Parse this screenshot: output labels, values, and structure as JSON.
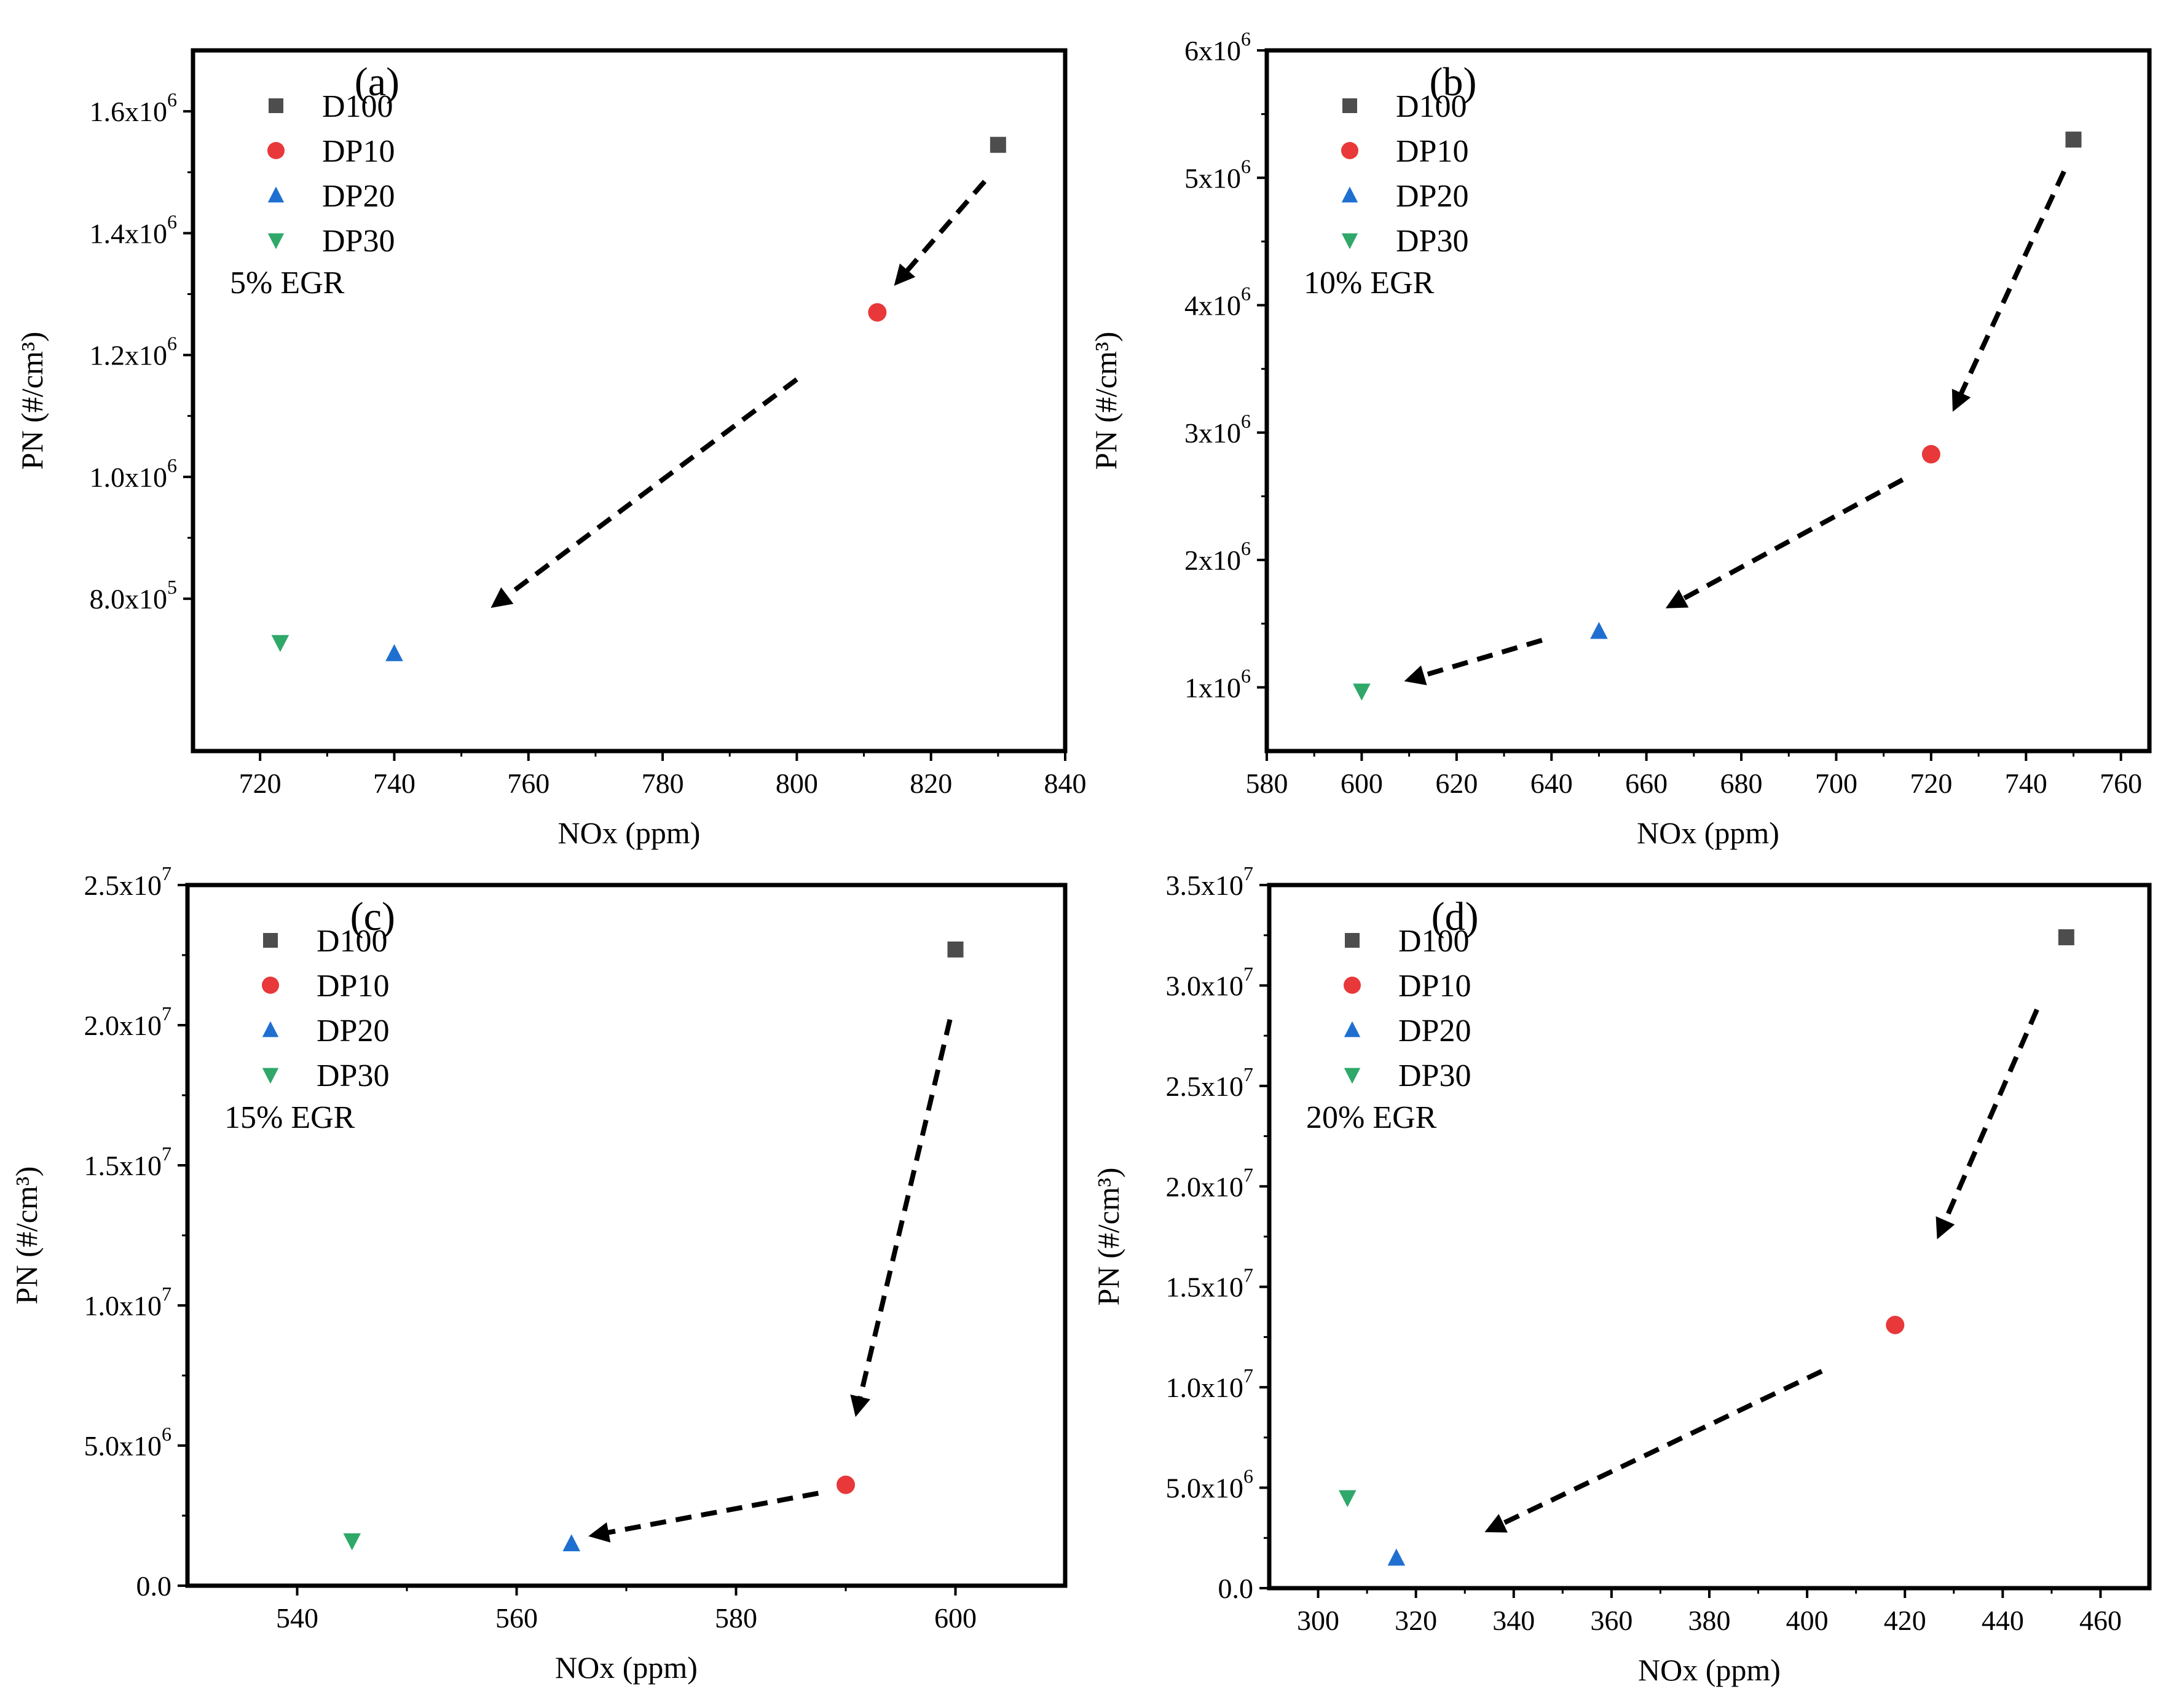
{
  "chart_data": [
    {
      "type": "scatter",
      "panel_label": "(a)",
      "annotation": "5% EGR",
      "xlabel": "NOx (ppm)",
      "ylabel": "PN (#/cm³)",
      "xlim": [
        710,
        840
      ],
      "ylim": [
        550000,
        1700000
      ],
      "x_ticks": [
        720,
        740,
        760,
        780,
        800,
        820,
        840
      ],
      "x_tick_labels": [
        "720",
        "740",
        "760",
        "780",
        "800",
        "820",
        "840"
      ],
      "y_ticks": [
        800000,
        1000000,
        1200000,
        1400000,
        1600000
      ],
      "y_tick_labels": [
        {
          "mantissa": "8.0x10",
          "exponent": "5"
        },
        {
          "mantissa": "1.0x10",
          "exponent": "6"
        },
        {
          "mantissa": "1.2x10",
          "exponent": "6"
        },
        {
          "mantissa": "1.4x10",
          "exponent": "6"
        },
        {
          "mantissa": "1.6x10",
          "exponent": "6"
        }
      ],
      "legend_position": "top-left",
      "series": [
        {
          "name": "D100",
          "marker": "square",
          "color": "#4d4d4d",
          "x": 830,
          "y": 1545000
        },
        {
          "name": "DP10",
          "marker": "circle",
          "color": "#e8383a",
          "x": 812,
          "y": 1270000
        },
        {
          "name": "DP20",
          "marker": "triangle-up",
          "color": "#1f6fd1",
          "x": 740,
          "y": 710000
        },
        {
          "name": "DP30",
          "marker": "triangle-down",
          "color": "#2fa86a",
          "x": 723,
          "y": 728000
        }
      ],
      "arrows": [
        {
          "from": [
            828,
            1485000
          ],
          "to": [
            815,
            1320000
          ]
        },
        {
          "from": [
            800,
            1160000
          ],
          "to": [
            755,
            790000
          ]
        }
      ]
    },
    {
      "type": "scatter",
      "panel_label": "(b)",
      "annotation": "10% EGR",
      "xlabel": "NOx (ppm)",
      "ylabel": "PN (#/cm³)",
      "xlim": [
        580,
        766
      ],
      "ylim": [
        500000,
        6000000
      ],
      "x_ticks": [
        580,
        600,
        620,
        640,
        660,
        680,
        700,
        720,
        740,
        760
      ],
      "x_tick_labels": [
        "580",
        "600",
        "620",
        "640",
        "660",
        "680",
        "700",
        "720",
        "740",
        "760"
      ],
      "y_ticks": [
        1000000,
        2000000,
        3000000,
        4000000,
        5000000,
        6000000
      ],
      "y_tick_labels": [
        {
          "mantissa": "1x10",
          "exponent": "6"
        },
        {
          "mantissa": "2x10",
          "exponent": "6"
        },
        {
          "mantissa": "3x10",
          "exponent": "6"
        },
        {
          "mantissa": "4x10",
          "exponent": "6"
        },
        {
          "mantissa": "5x10",
          "exponent": "6"
        },
        {
          "mantissa": "6x10",
          "exponent": "6"
        }
      ],
      "legend_position": "top-left",
      "series": [
        {
          "name": "D100",
          "marker": "square",
          "color": "#4d4d4d",
          "x": 750,
          "y": 5300000
        },
        {
          "name": "DP10",
          "marker": "circle",
          "color": "#e8383a",
          "x": 720,
          "y": 2830000
        },
        {
          "name": "DP20",
          "marker": "triangle-up",
          "color": "#1f6fd1",
          "x": 650,
          "y": 1440000
        },
        {
          "name": "DP30",
          "marker": "triangle-down",
          "color": "#2fa86a",
          "x": 600,
          "y": 970000
        }
      ],
      "arrows": [
        {
          "from": [
            748,
            5050000
          ],
          "to": [
            725,
            3200000
          ]
        },
        {
          "from": [
            714,
            2630000
          ],
          "to": [
            665,
            1640000
          ]
        },
        {
          "from": [
            638,
            1370000
          ],
          "to": [
            610,
            1060000
          ]
        }
      ]
    },
    {
      "type": "scatter",
      "panel_label": "(c)",
      "annotation": "15% EGR",
      "xlabel": "NOx (ppm)",
      "ylabel": "PN (#/cm³)",
      "xlim": [
        530,
        610
      ],
      "ylim": [
        0,
        25000000
      ],
      "x_ticks": [
        540,
        560,
        580,
        600
      ],
      "x_tick_labels": [
        "540",
        "560",
        "580",
        "600"
      ],
      "y_ticks": [
        0,
        5000000,
        10000000,
        15000000,
        20000000,
        25000000
      ],
      "y_tick_labels": [
        {
          "mantissa": "0.0",
          "exponent": ""
        },
        {
          "mantissa": "5.0x10",
          "exponent": "6"
        },
        {
          "mantissa": "1.0x10",
          "exponent": "7"
        },
        {
          "mantissa": "1.5x10",
          "exponent": "7"
        },
        {
          "mantissa": "2.0x10",
          "exponent": "7"
        },
        {
          "mantissa": "2.5x10",
          "exponent": "7"
        }
      ],
      "legend_position": "top-left",
      "series": [
        {
          "name": "D100",
          "marker": "square",
          "color": "#4d4d4d",
          "x": 600,
          "y": 22700000
        },
        {
          "name": "DP10",
          "marker": "circle",
          "color": "#e8383a",
          "x": 590,
          "y": 3600000
        },
        {
          "name": "DP20",
          "marker": "triangle-up",
          "color": "#1f6fd1",
          "x": 565,
          "y": 1500000
        },
        {
          "name": "DP30",
          "marker": "triangle-down",
          "color": "#2fa86a",
          "x": 545,
          "y": 1600000
        }
      ],
      "arrows": [
        {
          "from": [
            599.5,
            20200000
          ],
          "to": [
            591,
            6200000
          ]
        },
        {
          "from": [
            587.5,
            3300000
          ],
          "to": [
            567,
            1800000
          ]
        }
      ]
    },
    {
      "type": "scatter",
      "panel_label": "(d)",
      "annotation": "20% EGR",
      "xlabel": "NOx (ppm)",
      "ylabel": "PN (#/cm³)",
      "xlim": [
        290,
        470
      ],
      "ylim": [
        0,
        35000000
      ],
      "x_ticks": [
        300,
        320,
        340,
        360,
        380,
        400,
        420,
        440,
        460
      ],
      "x_tick_labels": [
        "300",
        "320",
        "340",
        "360",
        "380",
        "400",
        "420",
        "440",
        "460"
      ],
      "y_ticks": [
        0,
        5000000,
        10000000,
        15000000,
        20000000,
        25000000,
        30000000,
        35000000
      ],
      "y_tick_labels": [
        {
          "mantissa": "0.0",
          "exponent": ""
        },
        {
          "mantissa": "5.0x10",
          "exponent": "6"
        },
        {
          "mantissa": "1.0x10",
          "exponent": "7"
        },
        {
          "mantissa": "1.5x10",
          "exponent": "7"
        },
        {
          "mantissa": "2.0x10",
          "exponent": "7"
        },
        {
          "mantissa": "2.5x10",
          "exponent": "7"
        },
        {
          "mantissa": "3.0x10",
          "exponent": "7"
        },
        {
          "mantissa": "3.5x10",
          "exponent": "7"
        }
      ],
      "legend_position": "top-left",
      "series": [
        {
          "name": "D100",
          "marker": "square",
          "color": "#4d4d4d",
          "x": 453,
          "y": 32400000
        },
        {
          "name": "DP10",
          "marker": "circle",
          "color": "#e8383a",
          "x": 418,
          "y": 13100000
        },
        {
          "name": "DP20",
          "marker": "triangle-up",
          "color": "#1f6fd1",
          "x": 316,
          "y": 1500000
        },
        {
          "name": "DP30",
          "marker": "triangle-down",
          "color": "#2fa86a",
          "x": 306,
          "y": 4500000
        }
      ],
      "arrows": [
        {
          "from": [
            447,
            28800000
          ],
          "to": [
            427,
            17600000
          ]
        },
        {
          "from": [
            403,
            10800000
          ],
          "to": [
            335,
            2900000
          ]
        }
      ]
    }
  ]
}
